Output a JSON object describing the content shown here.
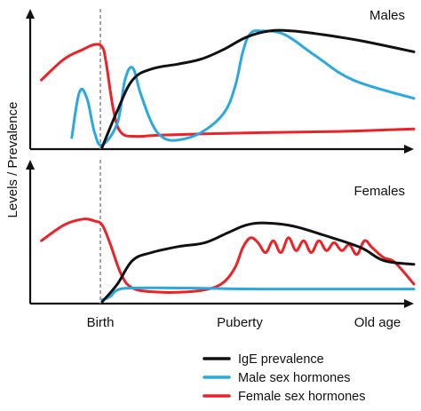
{
  "figure": {
    "ylabel": "Levels / Prevalence",
    "x_ticks": [
      "Birth",
      "Puberty",
      "Old age"
    ]
  },
  "colors": {
    "ige": "#111111",
    "male": "#29a9e1",
    "female": "#ec2227",
    "birth_line": "#888888"
  },
  "legend": [
    {
      "key": "ige",
      "label": "IgE prevalence",
      "color": "#111111"
    },
    {
      "key": "male",
      "label": "Male sex hormones",
      "color": "#29a9e1"
    },
    {
      "key": "female",
      "label": "Female sex hormones",
      "color": "#ec2227"
    }
  ],
  "chart_data": [
    {
      "type": "line",
      "title": "Males",
      "xlabel": "",
      "ylabel": "Levels / Prevalence",
      "xlim": [
        0,
        100
      ],
      "ylim": [
        0,
        100
      ],
      "grid": false,
      "legend": "bottom-right",
      "x_ticks": [
        {
          "label": "Birth",
          "x": 18
        },
        {
          "label": "Puberty",
          "x": 59
        },
        {
          "label": "Old age",
          "x": 98
        }
      ],
      "series": [
        {
          "name": "IgE prevalence",
          "key": "ige",
          "points": [
            [
              18,
              0
            ],
            [
              22,
              30
            ],
            [
              26,
              55
            ],
            [
              31,
              64
            ],
            [
              38,
              68
            ],
            [
              44,
              72
            ],
            [
              50,
              80
            ],
            [
              56,
              90
            ],
            [
              62,
              95
            ],
            [
              68,
              95
            ],
            [
              76,
              92
            ],
            [
              86,
              87
            ],
            [
              100,
              78
            ]
          ]
        },
        {
          "name": "Male sex hormones",
          "key": "male",
          "points": [
            [
              10,
              8
            ],
            [
              12,
              45
            ],
            [
              14,
              40
            ],
            [
              16,
              12
            ],
            [
              18,
              2
            ],
            [
              22,
              20
            ],
            [
              24,
              55
            ],
            [
              26,
              65
            ],
            [
              28,
              45
            ],
            [
              31,
              20
            ],
            [
              34,
              8
            ],
            [
              38,
              6
            ],
            [
              44,
              12
            ],
            [
              50,
              28
            ],
            [
              53,
              50
            ],
            [
              55,
              78
            ],
            [
              57,
              93
            ],
            [
              60,
              95
            ],
            [
              66,
              92
            ],
            [
              74,
              75
            ],
            [
              84,
              55
            ],
            [
              100,
              40
            ]
          ]
        },
        {
          "name": "Female sex hormones",
          "key": "female",
          "points": [
            [
              2,
              55
            ],
            [
              8,
              72
            ],
            [
              13,
              80
            ],
            [
              16,
              84
            ],
            [
              18,
              82
            ],
            [
              19,
              70
            ],
            [
              21,
              30
            ],
            [
              23,
              12
            ],
            [
              27,
              9
            ],
            [
              33,
              10
            ],
            [
              45,
              11
            ],
            [
              60,
              12
            ],
            [
              80,
              13
            ],
            [
              100,
              15
            ]
          ]
        }
      ]
    },
    {
      "type": "line",
      "title": "Females",
      "xlabel": "",
      "ylabel": "Levels / Prevalence",
      "xlim": [
        0,
        100
      ],
      "ylim": [
        0,
        100
      ],
      "grid": false,
      "legend": "bottom-right",
      "x_ticks": [
        {
          "label": "Birth",
          "x": 18
        },
        {
          "label": "Puberty",
          "x": 59
        },
        {
          "label": "Old age",
          "x": 98
        }
      ],
      "series": [
        {
          "name": "IgE prevalence",
          "key": "ige",
          "points": [
            [
              18,
              0
            ],
            [
              22,
              18
            ],
            [
              26,
              42
            ],
            [
              31,
              50
            ],
            [
              38,
              56
            ],
            [
              45,
              60
            ],
            [
              51,
              70
            ],
            [
              56,
              78
            ],
            [
              61,
              80
            ],
            [
              68,
              77
            ],
            [
              76,
              68
            ],
            [
              86,
              55
            ],
            [
              92,
              42
            ],
            [
              100,
              38
            ]
          ]
        },
        {
          "name": "Male sex hormones",
          "key": "male",
          "points": [
            [
              18,
              2
            ],
            [
              20,
              5
            ],
            [
              22,
              12
            ],
            [
              26,
              14
            ],
            [
              40,
              14
            ],
            [
              60,
              13
            ],
            [
              100,
              13
            ]
          ]
        },
        {
          "name": "Female sex hormones",
          "key": "female",
          "points": [
            [
              2,
              62
            ],
            [
              8,
              78
            ],
            [
              13,
              84
            ],
            [
              16,
              82
            ],
            [
              18,
              78
            ],
            [
              20,
              60
            ],
            [
              23,
              28
            ],
            [
              26,
              14
            ],
            [
              32,
              10
            ],
            [
              40,
              10
            ],
            [
              46,
              13
            ],
            [
              50,
              20
            ],
            [
              53,
              35
            ],
            [
              55,
              55
            ],
            [
              57,
              65
            ],
            [
              59,
              60
            ],
            [
              61,
              50
            ],
            [
              63,
              62
            ],
            [
              65,
              50
            ],
            [
              67,
              65
            ],
            [
              69,
              52
            ],
            [
              71,
              62
            ],
            [
              73,
              50
            ],
            [
              75,
              62
            ],
            [
              77,
              52
            ],
            [
              79,
              60
            ],
            [
              81,
              52
            ],
            [
              83,
              58
            ],
            [
              85,
              48
            ],
            [
              87,
              62
            ],
            [
              89,
              55
            ],
            [
              92,
              45
            ],
            [
              95,
              40
            ],
            [
              100,
              18
            ]
          ]
        }
      ]
    }
  ]
}
